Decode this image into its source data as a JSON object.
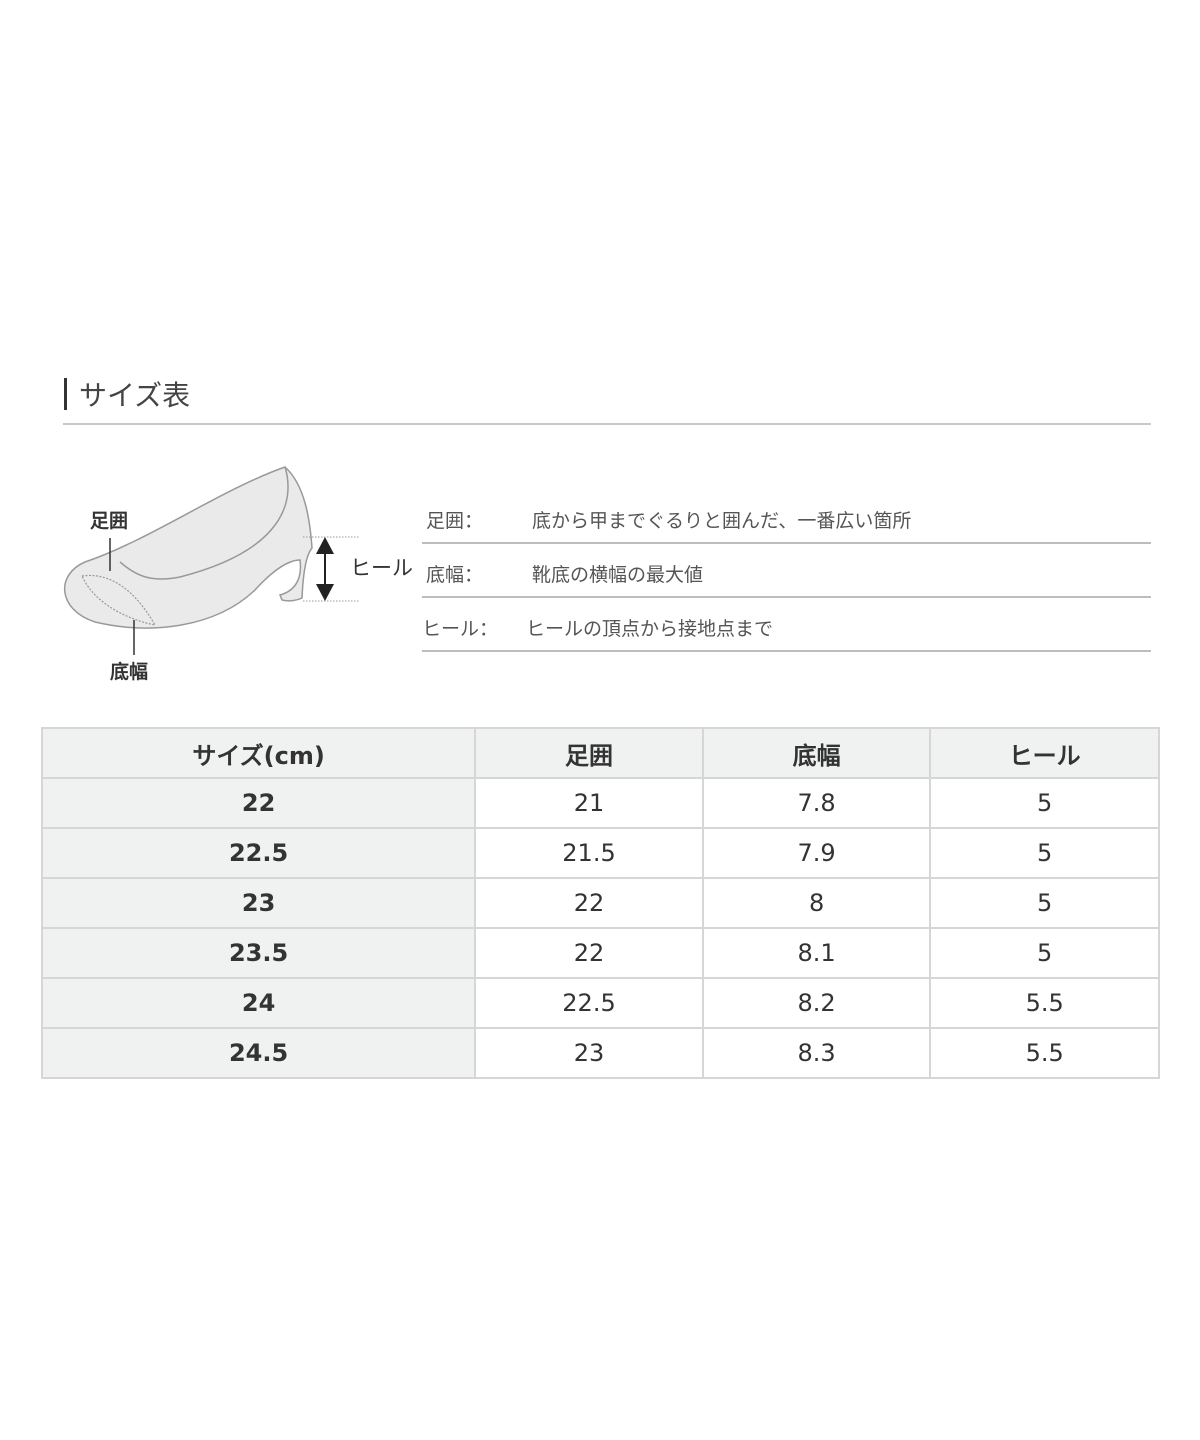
{
  "title": "サイズ表",
  "diagram": {
    "label_girth": "足囲",
    "label_width": "底幅",
    "label_heel": "ヒール"
  },
  "definitions": [
    {
      "term": "足囲：",
      "desc": "底から甲までぐるりと囲んだ、一番広い箇所"
    },
    {
      "term": "底幅：",
      "desc": "靴底の横幅の最大値"
    },
    {
      "term": "ヒール：",
      "desc": "ヒールの頂点から接地点まで"
    }
  ],
  "table": {
    "headers": [
      "サイズ(cm)",
      "足囲",
      "底幅",
      "ヒール"
    ],
    "rows": [
      [
        "22",
        "21",
        "7.8",
        "5"
      ],
      [
        "22.5",
        "21.5",
        "7.9",
        "5"
      ],
      [
        "23",
        "22",
        "8",
        "5"
      ],
      [
        "23.5",
        "22",
        "8.1",
        "5"
      ],
      [
        "24",
        "22.5",
        "8.2",
        "5.5"
      ],
      [
        "24.5",
        "23",
        "8.3",
        "5.5"
      ]
    ]
  }
}
